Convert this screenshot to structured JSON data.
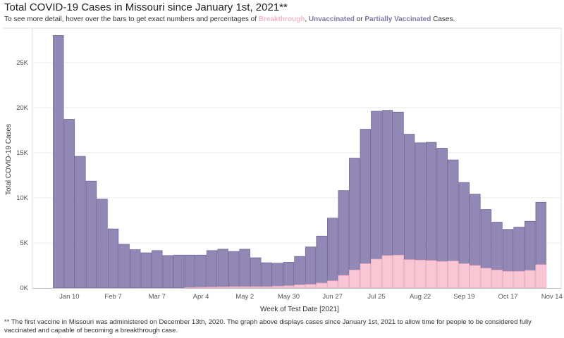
{
  "header": {
    "title": "Total COVID-19 Cases in Missouri since January 1st, 2021**",
    "subtitle_prefix": "To see more detail, hover over the bars to get exact numbers and percentages of ",
    "subtitle_breakthrough": "Breakthrough",
    "subtitle_sep1": ", ",
    "subtitle_unvaccinated": "Unvaccinated",
    "subtitle_sep2": " or ",
    "subtitle_partial": "Partially Vaccinated",
    "subtitle_suffix": " Cases."
  },
  "colors": {
    "unvaccinated": "#9188b6",
    "unvaccinated_stroke": "#6e6798",
    "breakthrough": "#f8c6d4",
    "breakthrough_stroke": "#e9a5b8",
    "gridline": "#eeeeee",
    "axis": "#bbbbbb"
  },
  "chart_data": {
    "type": "bar",
    "stacked": true,
    "xlabel": "Week of Test Date [2021]",
    "ylabel": "Total COVID-19 Cases",
    "ylim": [
      0,
      28500
    ],
    "yticks": [
      0,
      5000,
      10000,
      15000,
      20000,
      25000
    ],
    "ytick_labels": [
      "0K",
      "5K",
      "10K",
      "15K",
      "20K",
      "25K"
    ],
    "grid": true,
    "x_tick_labels": [
      {
        "index": 1,
        "label": "Jan 10"
      },
      {
        "index": 5,
        "label": "Feb 7"
      },
      {
        "index": 9,
        "label": "Mar 7"
      },
      {
        "index": 13,
        "label": "Apr 4"
      },
      {
        "index": 17,
        "label": "May 2"
      },
      {
        "index": 21,
        "label": "May 30"
      },
      {
        "index": 25,
        "label": "Jun 27"
      },
      {
        "index": 29,
        "label": "Jul 25"
      },
      {
        "index": 33,
        "label": "Aug 22"
      },
      {
        "index": 37,
        "label": "Sep 19"
      },
      {
        "index": 41,
        "label": "Oct 17"
      },
      {
        "index": 45,
        "label": "Nov 14"
      }
    ],
    "series": [
      {
        "name": "Breakthrough",
        "values": [
          0,
          0,
          0,
          0,
          0,
          0,
          0,
          0,
          0,
          0,
          0,
          0,
          50,
          80,
          100,
          120,
          150,
          150,
          150,
          150,
          200,
          250,
          350,
          400,
          550,
          800,
          1400,
          2000,
          2700,
          3200,
          3600,
          3650,
          3150,
          3100,
          3050,
          2950,
          3000,
          2700,
          2500,
          2200,
          2000,
          1850,
          1850,
          1950,
          2600
        ]
      },
      {
        "name": "Unvaccinated",
        "values": [
          28000,
          18700,
          14600,
          11850,
          9850,
          6550,
          4850,
          4250,
          3900,
          4150,
          3600,
          3650,
          3600,
          3570,
          4050,
          4180,
          3900,
          4150,
          3200,
          2650,
          2550,
          2600,
          3150,
          4150,
          5200,
          6950,
          9400,
          12400,
          14900,
          16400,
          16100,
          15850,
          13900,
          13000,
          13100,
          12550,
          11200,
          9000,
          7900,
          6500,
          5300,
          4650,
          4900,
          5450,
          6900
        ]
      }
    ]
  },
  "footnote": "** The first vaccine in Missouri was administered on December 13th, 2020. The graph above displays cases since January 1st, 2021 to allow time for people to be considered fully vaccinated  and  capable of becoming a breakthrough case."
}
